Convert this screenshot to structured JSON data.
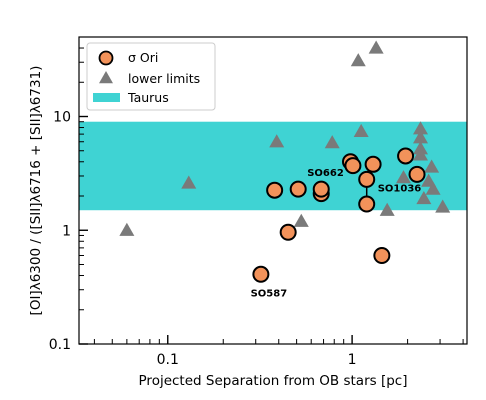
{
  "chart_data": {
    "type": "scatter",
    "xlabel": "Projected Separation from OB stars [pc]",
    "ylabel": "[OI]λ6300 / ([SII]λ6716 + [SII]λ6731)",
    "x_scale": "log",
    "y_scale": "log",
    "xlim": [
      0.033,
      4.2
    ],
    "ylim": [
      0.1,
      50
    ],
    "x_ticks": [
      0.1,
      1
    ],
    "x_tick_labels": [
      "0.1",
      "1"
    ],
    "y_ticks": [
      0.1,
      1,
      10
    ],
    "y_tick_labels": [
      "0.1",
      "1",
      "10"
    ],
    "band": {
      "name": "Taurus",
      "ymin": 1.5,
      "ymax": 9,
      "color": "#3fd3d3"
    },
    "legend_position": "top-left",
    "series": [
      {
        "name": "σ Ori",
        "marker": "circle",
        "color": "#f2925a",
        "points": [
          {
            "x": 0.32,
            "y": 0.41
          },
          {
            "x": 0.38,
            "y": 2.25
          },
          {
            "x": 0.45,
            "y": 0.96
          },
          {
            "x": 0.51,
            "y": 2.3
          },
          {
            "x": 0.68,
            "y": 2.1
          },
          {
            "x": 0.68,
            "y": 2.3
          },
          {
            "x": 0.98,
            "y": 4.0
          },
          {
            "x": 1.01,
            "y": 3.7
          },
          {
            "x": 1.2,
            "y": 2.8
          },
          {
            "x": 1.2,
            "y": 1.7
          },
          {
            "x": 1.3,
            "y": 3.8
          },
          {
            "x": 1.45,
            "y": 0.6
          },
          {
            "x": 1.95,
            "y": 4.5
          },
          {
            "x": 2.25,
            "y": 3.1
          }
        ]
      },
      {
        "name": "lower limits",
        "marker": "triangle",
        "color": "#7a7a7a",
        "points": [
          {
            "x": 0.06,
            "y": 1.0
          },
          {
            "x": 0.13,
            "y": 2.6
          },
          {
            "x": 0.39,
            "y": 6.0
          },
          {
            "x": 0.53,
            "y": 1.2
          },
          {
            "x": 0.78,
            "y": 5.9
          },
          {
            "x": 1.08,
            "y": 31
          },
          {
            "x": 1.12,
            "y": 7.4
          },
          {
            "x": 1.35,
            "y": 40
          },
          {
            "x": 1.55,
            "y": 1.5
          },
          {
            "x": 1.9,
            "y": 2.9
          },
          {
            "x": 2.35,
            "y": 7.8
          },
          {
            "x": 2.35,
            "y": 6.5
          },
          {
            "x": 2.35,
            "y": 5.2
          },
          {
            "x": 2.35,
            "y": 4.6
          },
          {
            "x": 2.45,
            "y": 1.9
          },
          {
            "x": 2.6,
            "y": 2.7
          },
          {
            "x": 2.7,
            "y": 3.6
          },
          {
            "x": 2.75,
            "y": 2.3
          },
          {
            "x": 3.1,
            "y": 1.6
          }
        ]
      }
    ],
    "errorbar": {
      "x": 1.2,
      "ylow": 1.7,
      "yhigh": 3.0
    },
    "annotations": [
      {
        "text": "SO587",
        "x": 0.32,
        "y": 0.41,
        "anchor": "below"
      },
      {
        "text": "SO662",
        "x": 0.68,
        "y": 2.3,
        "anchor": "above-right"
      },
      {
        "text": "SO1036",
        "x": 1.2,
        "y": 2.8,
        "anchor": "right"
      }
    ],
    "legend": [
      "σ Ori",
      "lower limits",
      "Taurus"
    ]
  }
}
